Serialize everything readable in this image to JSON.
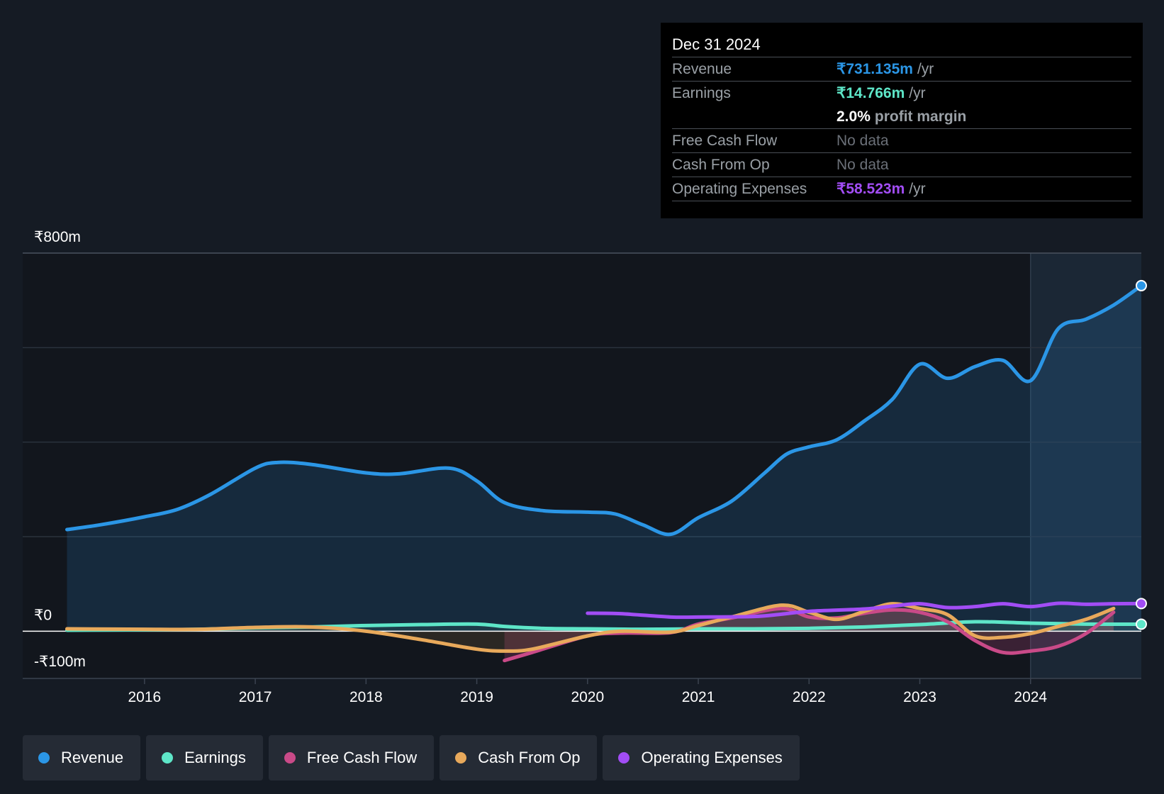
{
  "tooltip": {
    "date": "Dec 31 2024",
    "rows": [
      {
        "label": "Revenue",
        "value": "₹731.135m",
        "unit": "/yr",
        "color": "#2b96e6"
      },
      {
        "label": "Earnings",
        "value": "₹14.766m",
        "unit": "/yr",
        "color": "#5ee6c8"
      },
      {
        "label": "",
        "value": "2.0%",
        "unit": "profit margin",
        "color": "#ffffff"
      },
      {
        "label": "Free Cash Flow",
        "value": "No data",
        "unit": "",
        "color": ""
      },
      {
        "label": "Cash From Op",
        "value": "No data",
        "unit": "",
        "color": ""
      },
      {
        "label": "Operating Expenses",
        "value": "₹58.523m",
        "unit": "/yr",
        "color": "#a24df5"
      }
    ]
  },
  "legend": [
    {
      "label": "Revenue",
      "color": "#2b96e6"
    },
    {
      "label": "Earnings",
      "color": "#5ee6c8"
    },
    {
      "label": "Free Cash Flow",
      "color": "#c94a88"
    },
    {
      "label": "Cash From Op",
      "color": "#e8a95b"
    },
    {
      "label": "Operating Expenses",
      "color": "#a24df5"
    }
  ],
  "chart_data": {
    "type": "line",
    "title": "",
    "xlabel": "",
    "ylabel": "",
    "ylim": [
      -100,
      800
    ],
    "xlim": [
      2014.9,
      2025.0
    ],
    "y_tick_labels": [
      {
        "value": 800,
        "label": "₹800m"
      },
      {
        "value": 0,
        "label": "₹0"
      },
      {
        "value": -100,
        "label": "-₹100m"
      }
    ],
    "x_tick_labels": [
      "2016",
      "2017",
      "2018",
      "2019",
      "2020",
      "2021",
      "2022",
      "2023",
      "2024"
    ],
    "x_ticks": [
      2016,
      2017,
      2018,
      2019,
      2020,
      2021,
      2022,
      2023,
      2024
    ],
    "gridlines": [
      800,
      600,
      400,
      200
    ],
    "highlight_start": 2024.0,
    "series": [
      {
        "name": "Revenue",
        "color": "#2b96e6",
        "fill": true,
        "end_marker": true,
        "points": [
          [
            2015.3,
            215
          ],
          [
            2015.6,
            225
          ],
          [
            2016.0,
            242
          ],
          [
            2016.3,
            258
          ],
          [
            2016.6,
            290
          ],
          [
            2017.0,
            345
          ],
          [
            2017.2,
            357
          ],
          [
            2017.5,
            353
          ],
          [
            2018.0,
            335
          ],
          [
            2018.3,
            333
          ],
          [
            2018.75,
            345
          ],
          [
            2019.0,
            318
          ],
          [
            2019.25,
            272
          ],
          [
            2019.6,
            255
          ],
          [
            2020.0,
            252
          ],
          [
            2020.25,
            248
          ],
          [
            2020.5,
            225
          ],
          [
            2020.75,
            205
          ],
          [
            2021.0,
            240
          ],
          [
            2021.3,
            275
          ],
          [
            2021.6,
            335
          ],
          [
            2021.8,
            375
          ],
          [
            2022.0,
            390
          ],
          [
            2022.25,
            405
          ],
          [
            2022.5,
            445
          ],
          [
            2022.75,
            490
          ],
          [
            2023.0,
            565
          ],
          [
            2023.25,
            535
          ],
          [
            2023.5,
            560
          ],
          [
            2023.75,
            573
          ],
          [
            2024.0,
            530
          ],
          [
            2024.25,
            640
          ],
          [
            2024.5,
            660
          ],
          [
            2024.75,
            690
          ],
          [
            2025.0,
            731.1
          ]
        ]
      },
      {
        "name": "Earnings",
        "color": "#5ee6c8",
        "fill": true,
        "end_marker": true,
        "points": [
          [
            2015.3,
            2
          ],
          [
            2016.0,
            3
          ],
          [
            2016.5,
            4
          ],
          [
            2017.0,
            7
          ],
          [
            2017.5,
            9
          ],
          [
            2018.0,
            12
          ],
          [
            2018.5,
            14
          ],
          [
            2019.0,
            15
          ],
          [
            2019.25,
            10
          ],
          [
            2019.6,
            6
          ],
          [
            2020.0,
            5
          ],
          [
            2020.5,
            4
          ],
          [
            2021.0,
            5
          ],
          [
            2021.5,
            5
          ],
          [
            2022.0,
            6
          ],
          [
            2022.5,
            9
          ],
          [
            2023.0,
            14
          ],
          [
            2023.5,
            20
          ],
          [
            2024.0,
            17
          ],
          [
            2024.5,
            15
          ],
          [
            2025.0,
            14.8
          ]
        ]
      },
      {
        "name": "Free Cash Flow",
        "color": "#c94a88",
        "fill": true,
        "end_marker": false,
        "points": [
          [
            2019.25,
            -62
          ],
          [
            2019.5,
            -45
          ],
          [
            2020.0,
            -10
          ],
          [
            2020.3,
            -4
          ],
          [
            2020.75,
            -3
          ],
          [
            2021.0,
            15
          ],
          [
            2021.3,
            28
          ],
          [
            2021.75,
            48
          ],
          [
            2022.0,
            30
          ],
          [
            2022.25,
            28
          ],
          [
            2022.5,
            38
          ],
          [
            2022.75,
            45
          ],
          [
            2023.0,
            40
          ],
          [
            2023.25,
            20
          ],
          [
            2023.5,
            -20
          ],
          [
            2023.75,
            -45
          ],
          [
            2024.0,
            -42
          ],
          [
            2024.25,
            -32
          ],
          [
            2024.5,
            -5
          ],
          [
            2024.75,
            40
          ]
        ]
      },
      {
        "name": "Cash From Op",
        "color": "#e8a95b",
        "fill": true,
        "end_marker": false,
        "points": [
          [
            2015.3,
            5
          ],
          [
            2016.0,
            4
          ],
          [
            2016.5,
            4
          ],
          [
            2017.0,
            8
          ],
          [
            2017.5,
            9
          ],
          [
            2018.0,
            0
          ],
          [
            2018.5,
            -18
          ],
          [
            2019.0,
            -38
          ],
          [
            2019.25,
            -42
          ],
          [
            2019.5,
            -38
          ],
          [
            2020.0,
            -10
          ],
          [
            2020.3,
            0
          ],
          [
            2020.75,
            -2
          ],
          [
            2021.0,
            12
          ],
          [
            2021.3,
            30
          ],
          [
            2021.75,
            55
          ],
          [
            2022.0,
            40
          ],
          [
            2022.25,
            25
          ],
          [
            2022.5,
            42
          ],
          [
            2022.75,
            58
          ],
          [
            2023.0,
            48
          ],
          [
            2023.25,
            35
          ],
          [
            2023.5,
            -10
          ],
          [
            2023.75,
            -13
          ],
          [
            2024.0,
            -5
          ],
          [
            2024.25,
            10
          ],
          [
            2024.5,
            25
          ],
          [
            2024.75,
            48
          ]
        ]
      },
      {
        "name": "Operating Expenses",
        "color": "#a24df5",
        "fill": false,
        "end_marker": true,
        "points": [
          [
            2020.0,
            38
          ],
          [
            2020.3,
            37
          ],
          [
            2020.75,
            30
          ],
          [
            2021.0,
            30
          ],
          [
            2021.5,
            31
          ],
          [
            2021.75,
            36
          ],
          [
            2022.0,
            42
          ],
          [
            2022.5,
            47
          ],
          [
            2022.75,
            53
          ],
          [
            2023.0,
            58
          ],
          [
            2023.25,
            50
          ],
          [
            2023.5,
            52
          ],
          [
            2023.75,
            58
          ],
          [
            2024.0,
            52
          ],
          [
            2024.25,
            59
          ],
          [
            2024.5,
            57
          ],
          [
            2024.75,
            58
          ],
          [
            2025.0,
            58.5
          ]
        ]
      }
    ]
  }
}
